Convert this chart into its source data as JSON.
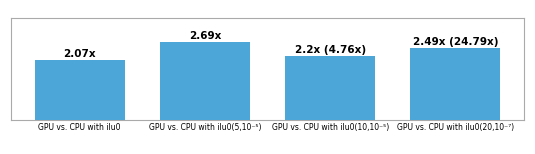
{
  "categories": [
    "GPU vs. CPU with ilu0",
    "GPU vs. CPU with ilu0(5,10⁻⁵)",
    "GPU vs. CPU with ilu0(10,10⁻⁵)",
    "GPU vs. CPU with ilu0(20,10⁻⁷)"
  ],
  "values": [
    2.07,
    2.69,
    2.2,
    2.49
  ],
  "bar_labels": [
    "2.07x",
    "2.69x",
    "2.2x (4.76x)",
    "2.49x (24.79x)"
  ],
  "bar_color": "#4da6d8",
  "background_color": "#ffffff",
  "border_color": "#aaaaaa",
  "ylim": [
    0,
    3.5
  ],
  "label_fontsize": 7.5,
  "tick_fontsize": 5.5,
  "bar_width": 0.72
}
